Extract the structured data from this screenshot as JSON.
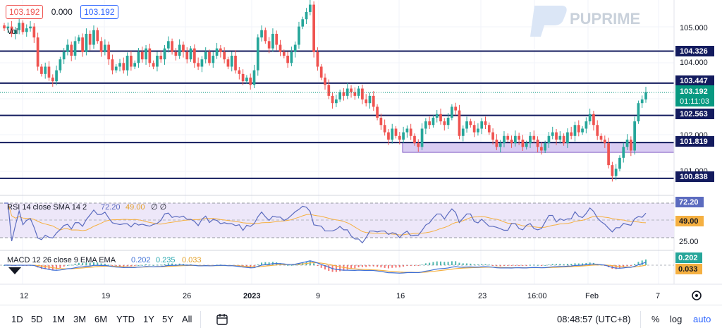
{
  "legend": {
    "price_red": "103.192",
    "change": "0.000",
    "price_blue": "103.192",
    "vol_label": "Vol"
  },
  "watermark": "PUPRIME",
  "colors": {
    "up": "#26a69a",
    "down": "#ef5350",
    "level_line": "#131b5e",
    "zone_fill": "#d9ccf2",
    "rsi_line": "#5b6bbf",
    "rsi_ma": "#f5b041",
    "macd_line": "#3d6fd6",
    "signal_line": "#f5b041",
    "current_badge": "#089981"
  },
  "price_axis": {
    "ticks": [
      "105.000",
      "104.000",
      "102.000",
      "101.000"
    ],
    "level_badges": [
      "104.326",
      "103.447",
      "102.563",
      "101.819",
      "100.838"
    ],
    "current_price": "103.192",
    "countdown": "01:11:03"
  },
  "rsi": {
    "legend": "RSI 14 close SMA 14 2",
    "value": "72.20",
    "ma_value": "49.00",
    "extra": "∅ ∅",
    "badge_value": "72.20",
    "badge_ma": "49.00",
    "tick_low": "25.00"
  },
  "macd": {
    "legend": "MACD 12 26 close 9 EMA EMA",
    "macd": "0.202",
    "signal": "0.235",
    "hist": "0.033",
    "badge_macd": "0.202",
    "badge_hist": "0.033"
  },
  "time_axis": {
    "labels": [
      "12",
      "19",
      "26",
      "2023",
      "9",
      "16",
      "23",
      "16:00",
      "Feb",
      "7"
    ]
  },
  "toolbar": {
    "timeframes": [
      "1D",
      "5D",
      "1M",
      "3M",
      "6M",
      "YTD",
      "1Y",
      "5Y",
      "All"
    ],
    "clock": "08:48:57 (UTC+8)",
    "percent": "%",
    "log": "log",
    "auto": "auto"
  },
  "chart_data": {
    "type": "candlestick",
    "y_range": [
      100.7,
      105.65
    ],
    "levels": [
      104.326,
      103.447,
      102.563,
      101.819,
      100.838
    ],
    "support_zone": [
      101.55,
      101.82
    ],
    "closes": [
      104.95,
      105.0,
      104.8,
      104.9,
      105.1,
      104.85,
      104.95,
      105.0,
      104.7,
      103.9,
      103.7,
      103.9,
      103.6,
      103.5,
      103.8,
      104.1,
      104.3,
      104.5,
      104.2,
      104.6,
      104.7,
      104.3,
      104.8,
      104.5,
      104.9,
      104.6,
      104.3,
      104.5,
      104.1,
      103.8,
      103.9,
      104.0,
      103.8,
      104.2,
      103.9,
      104.0,
      104.3,
      104.1,
      104.4,
      104.0,
      103.9,
      104.2,
      104.1,
      104.4,
      104.6,
      104.3,
      104.2,
      104.5,
      104.3,
      104.1,
      104.4,
      104.0,
      103.9,
      104.1,
      104.3,
      104.0,
      104.2,
      104.4,
      104.3,
      104.1,
      103.9,
      104.2,
      103.8,
      103.7,
      103.5,
      103.6,
      103.4,
      103.8,
      104.7,
      104.9,
      104.6,
      104.4,
      104.8,
      104.5,
      104.3,
      104.2,
      104.0,
      104.3,
      104.5,
      105.0,
      105.2,
      105.4,
      105.6,
      104.3,
      103.9,
      103.6,
      103.4,
      103.1,
      102.9,
      103.0,
      103.2,
      103.1,
      103.3,
      103.2,
      103.1,
      103.3,
      103.0,
      102.9,
      103.1,
      102.8,
      102.5,
      102.3,
      102.1,
      101.9,
      102.2,
      102.0,
      101.9,
      102.1,
      102.2,
      102.0,
      101.8,
      101.7,
      102.2,
      102.4,
      102.3,
      102.5,
      102.6,
      102.4,
      102.3,
      102.5,
      102.8,
      102.7,
      102.0,
      102.2,
      102.4,
      102.3,
      102.1,
      102.2,
      102.4,
      102.3,
      102.1,
      101.9,
      101.7,
      101.8,
      102.0,
      101.9,
      101.8,
      102.0,
      101.9,
      101.7,
      101.8,
      102.0,
      101.9,
      101.7,
      101.6,
      101.8,
      102.0,
      102.1,
      101.9,
      102.0,
      101.8,
      102.1,
      102.0,
      102.3,
      102.1,
      102.2,
      102.4,
      102.6,
      102.3,
      102.0,
      101.9,
      101.8,
      101.2,
      100.9,
      101.1,
      101.4,
      101.7,
      101.9,
      101.6,
      102.4,
      102.9,
      103.0,
      103.2
    ]
  }
}
